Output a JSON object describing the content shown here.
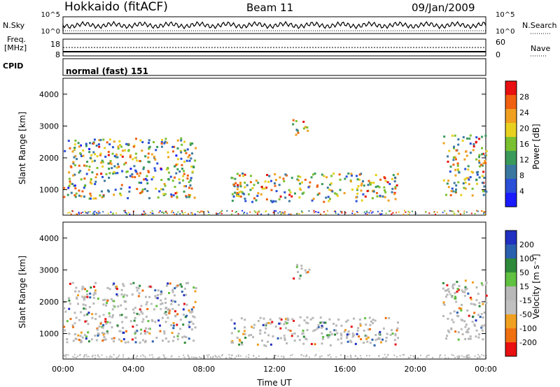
{
  "header": {
    "title_left": "Hokkaido (fitACF)",
    "title_mid": "Beam 11",
    "title_right": "09/Jan/2009"
  },
  "strip": {
    "nsky_label": "N.Sky",
    "nsearch_label": "N.Search",
    "freq_label": "Freq.",
    "freq_unit": "[MHz]",
    "nave_label": "Nave",
    "cpid_label": "CPID",
    "cpid_text": "normal (fast) 151",
    "noise_ticks_left": [
      "10^5",
      "10^0"
    ],
    "noise_ticks_right": [
      "10^5",
      "10^0"
    ],
    "freq_ticks": [
      "18",
      "8"
    ],
    "nave_ticks": [
      "60",
      "0"
    ]
  },
  "chart_data": [
    {
      "type": "heatmap",
      "name": "power",
      "ylabel": "Slant Range [km]",
      "y_ticks": [
        "1000",
        "2000",
        "3000",
        "4000"
      ],
      "ylim": [
        200,
        4500
      ],
      "colorbar_label": "Power [dB]",
      "colorbar_ticks": [
        "4",
        "8",
        "12",
        "16",
        "20",
        "24",
        "28"
      ],
      "colorbar_colors": [
        "#1a1aff",
        "#2a4fd8",
        "#3a78a0",
        "#3a9a5a",
        "#7ac030",
        "#e8d020",
        "#f0a020",
        "#f06010",
        "#e81010"
      ],
      "regions": [
        {
          "t0": 0.0,
          "t1": 7.5,
          "r0": 700,
          "r1": 2600,
          "level": 0.5
        },
        {
          "t0": 9.5,
          "t1": 19.0,
          "r0": 600,
          "r1": 1500,
          "level": 0.55
        },
        {
          "t0": 13.0,
          "t1": 14.0,
          "r0": 2700,
          "r1": 3200,
          "level": 0.6
        },
        {
          "t0": 21.5,
          "t1": 24.0,
          "r0": 800,
          "r1": 2700,
          "level": 0.55
        }
      ]
    },
    {
      "type": "heatmap",
      "name": "velocity",
      "ylabel": "Slant Range [km]",
      "xlabel": "Time UT",
      "x_ticks": [
        "00:00",
        "04:00",
        "08:00",
        "12:00",
        "16:00",
        "20:00",
        "00:00"
      ],
      "y_ticks": [
        "1000",
        "2000",
        "3000",
        "4000"
      ],
      "ylim": [
        200,
        4500
      ],
      "colorbar_label": "Velocity [m s⁻¹]",
      "colorbar_ticks": [
        "200",
        "100",
        "50",
        "15",
        "-15",
        "-50",
        "-100",
        "-200"
      ],
      "colorbar_colors": [
        "#2030c0",
        "#2a60b0",
        "#2e8a3a",
        "#60c040",
        "#b8b8b8",
        "#c0c0c0",
        "#f0a020",
        "#f07010",
        "#e81010"
      ]
    }
  ]
}
